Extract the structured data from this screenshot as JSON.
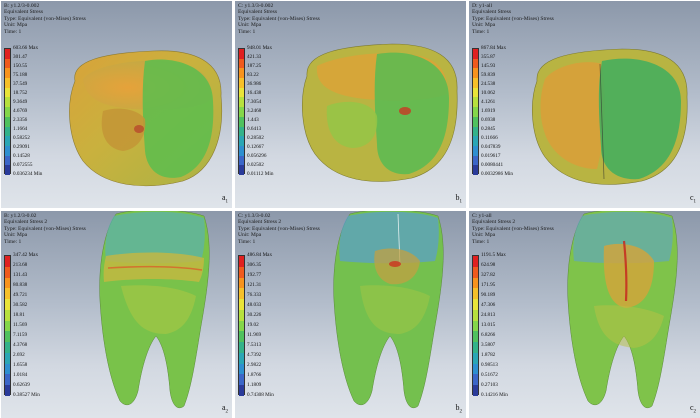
{
  "legend_colors": [
    "#e02020",
    "#f05a1e",
    "#f7931e",
    "#f6c02a",
    "#e9e43a",
    "#b7e03e",
    "#84d64a",
    "#4fc15e",
    "#33b28a",
    "#2aa6b5",
    "#2e8fd0",
    "#3b66c8",
    "#2a3b9a"
  ],
  "panels": [
    {
      "header": [
        "B: y1.2/3-0.002",
        "Equivalent Stress",
        "Type: Equivalent (von-Mises) Stress",
        "Unit: Mpa",
        "Time: 1"
      ],
      "labels": [
        "603.66 Max",
        "301.47",
        "150.55",
        "75.188",
        "37.549",
        "18.752",
        "9.3649",
        "4.6769",
        "2.3356",
        "1.1664",
        "0.58252",
        "0.29091",
        "0.14528",
        "0.072555",
        "0.036234 Min"
      ],
      "corner": "a",
      "corner_sub": "1"
    },
    {
      "header": [
        "C: y1.3/3-0.002",
        "Equivalent Stress",
        "Type: Equivalent (von-Mises) Stress",
        "Unit: Mpa",
        "Time: 1"
      ],
      "labels": [
        "948.01 Max",
        "421.33",
        "187.25",
        "83.22",
        "36.986",
        "16.438",
        "7.3054",
        "3.2468",
        "1.443",
        "0.6413",
        "0.28502",
        "0.12667",
        "0.056296",
        "0.02502",
        "0.01112 Min"
      ],
      "corner": "b",
      "corner_sub": "1"
    },
    {
      "header": [
        "D: y1-all",
        "Equivalent Stress",
        "Type: Equivalent (von-Mises) Stress",
        "Unit: Mpa",
        "Time: 1"
      ],
      "labels": [
        "867.84 Max",
        "355.87",
        "145.93",
        "59.839",
        "24.538",
        "10.062",
        "4.1261",
        "1.6919",
        "0.6938",
        "0.2845",
        "0.11666",
        "0.047839",
        "0.019617",
        "0.0080441",
        "0.0032986 Min"
      ],
      "corner": "c",
      "corner_sub": "1"
    },
    {
      "header": [
        "B: y1.2/3-0.02",
        "Equivalent Stress 2",
        "Type: Equivalent (von-Mises) Stress",
        "Unit: Mpa",
        "Time: 1"
      ],
      "labels": [
        "347.42 Max",
        "213.68",
        "131.43",
        "80.838",
        "49.721",
        "30.582",
        "18.81",
        "11.569",
        "7.1159",
        "4.3768",
        "2.692",
        "1.6558",
        "1.0184",
        "0.62639",
        "0.38527 Min"
      ],
      "corner": "a",
      "corner_sub": "2"
    },
    {
      "header": [
        "C: y1.3/3-0.02",
        "Equivalent Stress 2",
        "Type: Equivalent (von-Mises) Stress",
        "Unit: Mpa",
        "Time: 1"
      ],
      "labels": [
        "486.84 Max",
        "306.35",
        "192.77",
        "121.31",
        "76.333",
        "48.033",
        "30.226",
        "19.02",
        "11.969",
        "7.5313",
        "4.7392",
        "2.9822",
        "1.8766",
        "1.1809",
        "0.74308 Min"
      ],
      "corner": "b",
      "corner_sub": "2"
    },
    {
      "header": [
        "C: y1-all",
        "Equivalent Stress 2",
        "Type: Equivalent (von-Mises) Stress",
        "Unit: Mpa",
        "Time: 1"
      ],
      "labels": [
        "1191.5 Max",
        "624.98",
        "327.82",
        "171.95",
        "90.189",
        "47.306",
        "24.813",
        "13.015",
        "6.8266",
        "3.5807",
        "1.8782",
        "0.98513",
        "0.51672",
        "0.27103",
        "0.14216 Min"
      ],
      "corner": "c",
      "corner_sub": "2"
    }
  ]
}
